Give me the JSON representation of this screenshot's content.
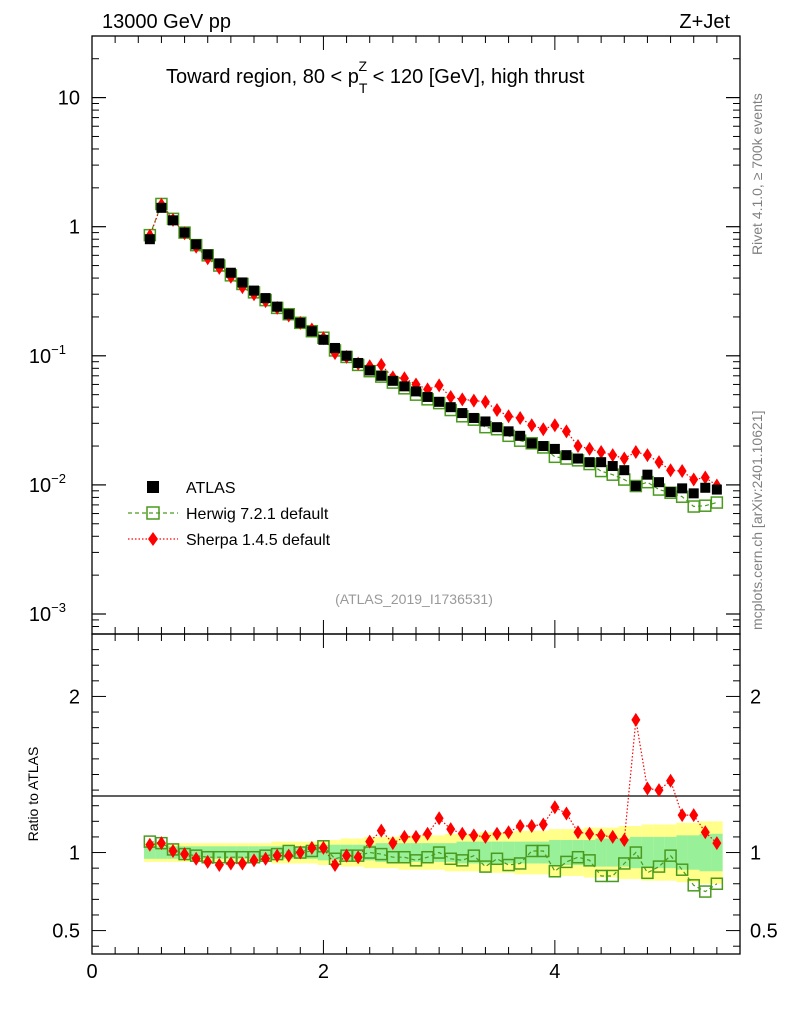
{
  "header": {
    "left": "13000 GeV pp",
    "right": "Z+Jet",
    "side_top": "Rivet 4.1.0, ≥ 700k events",
    "side_bottom": "mcplots.cern.ch [arXiv:2401.10621]"
  },
  "chart_data": [
    {
      "type": "scatter",
      "panel": "main",
      "title_parts": [
        "Toward region, 80 < p",
        "T",
        "Z",
        " < 120 [GeV], high thrust"
      ],
      "analysis_label": "(ATLAS_2019_I1736531)",
      "yscale": "log",
      "ylim": [
        0.0007,
        30
      ],
      "xlim": [
        0,
        5.6
      ],
      "y_major_ticks": [
        0.001,
        0.01,
        0.1,
        1,
        10
      ],
      "y_tick_labels": [
        {
          "base": "10",
          "exp": "−3"
        },
        {
          "base": "10",
          "exp": "−2"
        },
        {
          "base": "10",
          "exp": "−1"
        },
        {
          "base": "1",
          "exp": ""
        },
        {
          "base": "10",
          "exp": ""
        }
      ],
      "x": [
        0.5,
        0.6,
        0.7,
        0.8,
        0.9,
        1.0,
        1.1,
        1.2,
        1.3,
        1.4,
        1.5,
        1.6,
        1.7,
        1.8,
        1.9,
        2.0,
        2.1,
        2.2,
        2.3,
        2.4,
        2.5,
        2.6,
        2.7,
        2.8,
        2.9,
        3.0,
        3.1,
        3.2,
        3.3,
        3.4,
        3.5,
        3.6,
        3.7,
        3.8,
        3.9,
        4.0,
        4.1,
        4.2,
        4.3,
        4.4,
        4.5,
        4.6,
        4.7,
        4.8,
        4.9,
        5.0,
        5.1,
        5.2,
        5.3,
        5.4
      ],
      "series": [
        {
          "name": "ATLAS",
          "marker": "square-filled",
          "color": "#000000",
          "values": [
            0.8,
            1.4,
            1.12,
            0.9,
            0.73,
            0.61,
            0.52,
            0.44,
            0.37,
            0.32,
            0.28,
            0.24,
            0.21,
            0.18,
            0.155,
            0.133,
            0.115,
            0.1,
            0.088,
            0.077,
            0.07,
            0.064,
            0.058,
            0.053,
            0.048,
            0.044,
            0.04,
            0.036,
            0.033,
            0.031,
            0.028,
            0.026,
            0.024,
            0.021,
            0.02,
            0.019,
            0.017,
            0.016,
            0.015,
            0.015,
            0.014,
            0.013,
            0.0098,
            0.012,
            0.0105,
            0.0088,
            0.0094,
            0.0086,
            0.0095,
            0.0092
          ]
        },
        {
          "name": "Herwig 7.2.1 default",
          "marker": "square-open",
          "color": "#4a9a1e",
          "line": "dashed",
          "values": [
            0.86,
            1.5,
            1.15,
            0.9,
            0.72,
            0.6,
            0.5,
            0.42,
            0.36,
            0.31,
            0.27,
            0.235,
            0.21,
            0.18,
            0.155,
            0.138,
            0.11,
            0.098,
            0.085,
            0.076,
            0.069,
            0.062,
            0.056,
            0.05,
            0.046,
            0.043,
            0.038,
            0.034,
            0.032,
            0.028,
            0.027,
            0.024,
            0.022,
            0.021,
            0.0195,
            0.0165,
            0.016,
            0.0155,
            0.0145,
            0.0128,
            0.012,
            0.011,
            0.0098,
            0.0105,
            0.0092,
            0.0087,
            0.0081,
            0.0068,
            0.0069,
            0.0073
          ]
        },
        {
          "name": "Sherpa 1.4.5 default",
          "marker": "diamond-filled",
          "color": "#ff0000",
          "line": "dotted",
          "values": [
            0.85,
            1.48,
            1.13,
            0.89,
            0.7,
            0.57,
            0.48,
            0.41,
            0.34,
            0.3,
            0.265,
            0.235,
            0.205,
            0.18,
            0.16,
            0.137,
            0.105,
            0.098,
            0.087,
            0.083,
            0.085,
            0.068,
            0.067,
            0.06,
            0.055,
            0.059,
            0.048,
            0.046,
            0.045,
            0.044,
            0.038,
            0.034,
            0.033,
            0.029,
            0.027,
            0.029,
            0.026,
            0.02,
            0.019,
            0.018,
            0.017,
            0.016,
            0.018,
            0.017,
            0.015,
            0.013,
            0.0128,
            0.011,
            0.0114,
            0.0099
          ]
        }
      ],
      "legend": [
        "ATLAS",
        "Herwig 7.2.1 default",
        "Sherpa 1.4.5 default"
      ],
      "legend_position": "lower-left"
    },
    {
      "type": "scatter",
      "panel": "ratio",
      "ylabel": "Ratio to ATLAS",
      "ylim": [
        0.35,
        2.4
      ],
      "y_tick_labels": [
        "0.5",
        "1",
        "2"
      ],
      "x_tick_labels": [
        "0",
        "2",
        "4"
      ],
      "x_ticks": [
        0,
        2,
        4
      ],
      "x": [
        0.5,
        0.6,
        0.7,
        0.8,
        0.9,
        1.0,
        1.1,
        1.2,
        1.3,
        1.4,
        1.5,
        1.6,
        1.7,
        1.8,
        1.9,
        2.0,
        2.1,
        2.2,
        2.3,
        2.4,
        2.5,
        2.6,
        2.7,
        2.8,
        2.9,
        3.0,
        3.1,
        3.2,
        3.3,
        3.4,
        3.5,
        3.6,
        3.7,
        3.8,
        3.9,
        4.0,
        4.1,
        4.2,
        4.3,
        4.4,
        4.5,
        4.6,
        4.7,
        4.8,
        4.9,
        5.0,
        5.1,
        5.2,
        5.3,
        5.4
      ],
      "uncertainty_inner": [
        0.04,
        0.04,
        0.04,
        0.04,
        0.04,
        0.04,
        0.04,
        0.04,
        0.04,
        0.04,
        0.04,
        0.04,
        0.04,
        0.04,
        0.04,
        0.05,
        0.05,
        0.05,
        0.05,
        0.05,
        0.06,
        0.06,
        0.06,
        0.06,
        0.06,
        0.06,
        0.06,
        0.07,
        0.07,
        0.07,
        0.07,
        0.07,
        0.07,
        0.07,
        0.07,
        0.08,
        0.08,
        0.08,
        0.08,
        0.09,
        0.09,
        0.09,
        0.1,
        0.1,
        0.1,
        0.1,
        0.11,
        0.11,
        0.12,
        0.12
      ],
      "uncertainty_outer": [
        0.06,
        0.06,
        0.06,
        0.06,
        0.06,
        0.06,
        0.06,
        0.06,
        0.06,
        0.06,
        0.06,
        0.07,
        0.07,
        0.07,
        0.07,
        0.08,
        0.08,
        0.09,
        0.09,
        0.1,
        0.1,
        0.1,
        0.11,
        0.11,
        0.11,
        0.11,
        0.12,
        0.12,
        0.12,
        0.13,
        0.13,
        0.13,
        0.14,
        0.14,
        0.14,
        0.15,
        0.15,
        0.15,
        0.16,
        0.16,
        0.16,
        0.17,
        0.17,
        0.18,
        0.18,
        0.18,
        0.19,
        0.19,
        0.2,
        0.2
      ],
      "series": [
        {
          "name": "Herwig 7.2.1 default",
          "marker": "square-open",
          "color": "#4a9a1e",
          "values": [
            1.07,
            1.06,
            1.02,
            0.99,
            0.98,
            0.97,
            0.97,
            0.97,
            0.97,
            0.97,
            0.98,
            0.99,
            1.01,
            1.0,
            1.01,
            1.04,
            0.96,
            0.98,
            0.98,
            1.0,
            0.99,
            0.97,
            0.97,
            0.95,
            0.97,
            1.0,
            0.96,
            0.95,
            0.98,
            0.91,
            0.96,
            0.92,
            0.93,
            1.01,
            1.01,
            0.88,
            0.94,
            0.97,
            0.95,
            0.85,
            0.85,
            0.93,
            1.0,
            0.87,
            0.91,
            0.98,
            0.89,
            0.79,
            0.75,
            0.8
          ]
        },
        {
          "name": "Sherpa 1.4.5 default",
          "marker": "diamond-filled",
          "color": "#ff0000",
          "values": [
            1.05,
            1.06,
            1.01,
            0.99,
            0.96,
            0.94,
            0.92,
            0.93,
            0.93,
            0.95,
            0.96,
            0.98,
            0.98,
            1.0,
            1.03,
            1.03,
            0.92,
            0.98,
            0.97,
            1.07,
            1.14,
            1.06,
            1.1,
            1.1,
            1.12,
            1.22,
            1.15,
            1.12,
            1.11,
            1.1,
            1.12,
            1.13,
            1.17,
            1.17,
            1.18,
            1.29,
            1.25,
            1.13,
            1.12,
            1.11,
            1.1,
            1.08,
            1.85,
            1.41,
            1.4,
            1.46,
            1.24,
            1.24,
            1.13,
            1.06
          ]
        }
      ]
    }
  ]
}
